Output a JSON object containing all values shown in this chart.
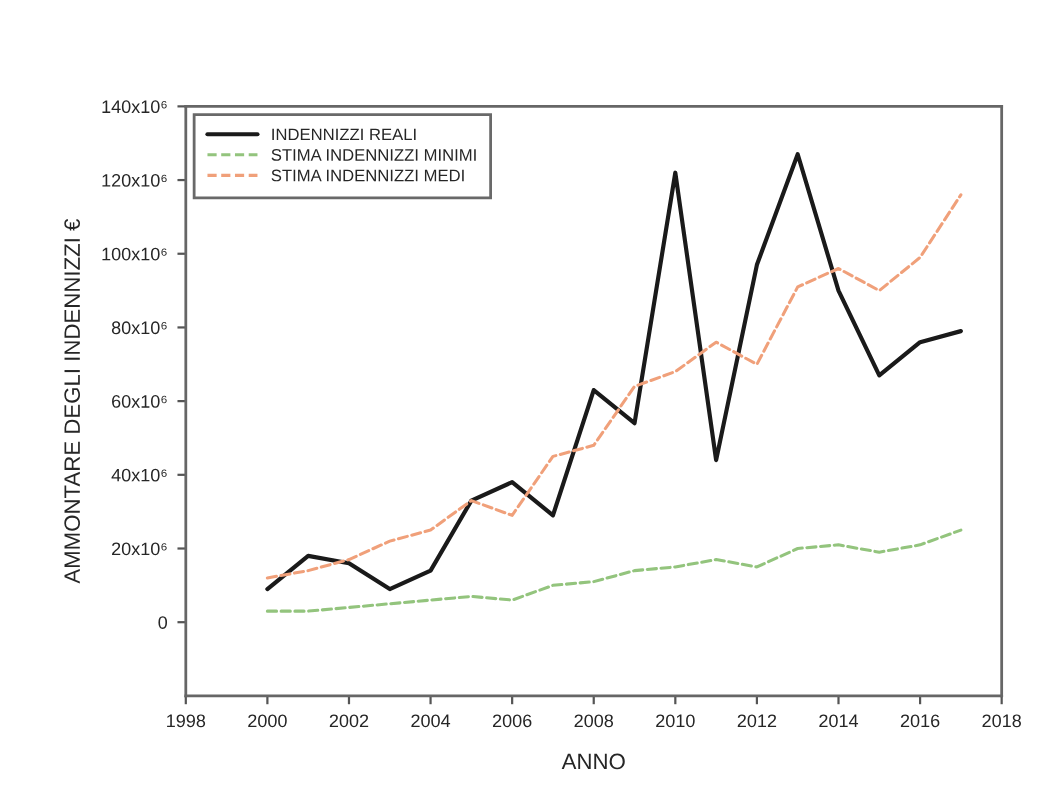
{
  "chart_data": {
    "type": "line",
    "xlabel": "ANNO",
    "ylabel": "AMMONTARE DEGLI INDENNIZZI €",
    "x": [
      2000,
      2001,
      2002,
      2003,
      2004,
      2005,
      2006,
      2007,
      2008,
      2009,
      2010,
      2011,
      2012,
      2013,
      2014,
      2015,
      2016,
      2017
    ],
    "series": [
      {
        "name": "INDENNIZZI REALI",
        "color": "#1a1a1a",
        "line_style": "solid",
        "values": [
          9000000,
          18000000,
          16000000,
          9000000,
          14000000,
          33000000,
          38000000,
          29000000,
          63000000,
          54000000,
          122000000,
          44000000,
          97000000,
          127000000,
          90000000,
          67000000,
          76000000,
          79000000
        ]
      },
      {
        "name": "STIMA INDENNIZZI MINIMI",
        "color": "#93c47d",
        "line_style": "dashed",
        "values": [
          3000000,
          3000000,
          4000000,
          5000000,
          6000000,
          7000000,
          6000000,
          10000000,
          11000000,
          14000000,
          15000000,
          17000000,
          15000000,
          20000000,
          21000000,
          19000000,
          21000000,
          25000000
        ]
      },
      {
        "name": "STIMA INDENNIZZI MEDI",
        "color": "#f0a07a",
        "line_style": "dashed",
        "values": [
          12000000,
          14000000,
          17000000,
          22000000,
          25000000,
          33000000,
          29000000,
          45000000,
          48000000,
          64000000,
          68000000,
          76000000,
          70000000,
          91000000,
          96000000,
          90000000,
          99000000,
          116000000
        ]
      }
    ],
    "xlim": [
      1998,
      2018
    ],
    "xticks": [
      1998,
      2000,
      2002,
      2004,
      2006,
      2008,
      2010,
      2012,
      2014,
      2016,
      2018
    ],
    "ylim": [
      -20000000,
      140000000
    ],
    "yticks": [
      0,
      {
        "value": 20000000,
        "label": "20x10⁶"
      },
      {
        "value": 40000000,
        "label": "40x10⁶"
      },
      {
        "value": 60000000,
        "label": "60x10⁶"
      },
      {
        "value": 80000000,
        "label": "80x10⁶"
      },
      {
        "value": 100000000,
        "label": "100x10⁶"
      },
      {
        "value": 120000000,
        "label": "120x10⁶"
      },
      {
        "value": 140000000,
        "label": "140x10⁶"
      }
    ],
    "legend": "top left",
    "grid": false,
    "marker": "none"
  }
}
